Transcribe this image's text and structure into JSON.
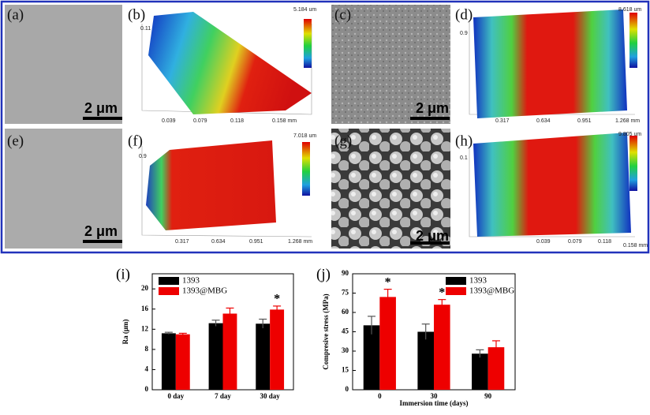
{
  "panels": [
    {
      "label": "(a)",
      "scale_bar": "2 μm"
    },
    {
      "label": "(b)",
      "z_axis": "0.11",
      "height_max": "5.184 um",
      "x_ticks": [
        "0.039",
        "0.079",
        "0.118",
        "0.158 mm"
      ]
    },
    {
      "label": "(c)",
      "scale_bar": "2 μm"
    },
    {
      "label": "(d)",
      "z_axis": "0.9",
      "height_max": "8.618 um",
      "x_ticks": [
        "0.317",
        "0.634",
        "0.951",
        "1.268 mm"
      ]
    },
    {
      "label": "(e)",
      "scale_bar": "2 μm"
    },
    {
      "label": "(f)",
      "z_axis": "0.9",
      "height_max": "7.018 um",
      "x_ticks": [
        "0.317",
        "0.634",
        "0.951",
        "1.268 mm"
      ]
    },
    {
      "label": "(g)",
      "scale_bar": "2 μm"
    },
    {
      "label": "(h)",
      "z_axis": "0.1",
      "height_max": "9.805 um",
      "x_ticks": [
        "0.039",
        "0.079",
        "0.118",
        "0.158 mm"
      ]
    }
  ],
  "chart_data": [
    {
      "type": "bar",
      "panel": "(i)",
      "y_label": "Ra (μm)",
      "categories": [
        "0 day",
        "7 day",
        "30 day"
      ],
      "series": [
        {
          "name": "1393",
          "color": "#000000",
          "values": [
            11.2,
            13.2,
            13.1
          ],
          "errors": [
            0.2,
            0.6,
            0.9
          ],
          "annotations": [
            null,
            null,
            null
          ]
        },
        {
          "name": "1393@MBG",
          "color": "#ee0000",
          "values": [
            11.0,
            15.1,
            15.9
          ],
          "errors": [
            0.2,
            1.1,
            0.7
          ],
          "annotations": [
            null,
            null,
            "*"
          ]
        }
      ],
      "ylim": [
        0,
        23
      ],
      "yticks": [
        0,
        4,
        8,
        12,
        16,
        20
      ],
      "legend": "upper left"
    },
    {
      "type": "bar",
      "panel": "(j)",
      "x_label": "Immersion time (days)",
      "y_label": "Compresive stress (MPa)",
      "categories": [
        "0",
        "30",
        "90"
      ],
      "series": [
        {
          "name": "1393",
          "color": "#000000",
          "values": [
            50,
            45,
            28
          ],
          "errors": [
            7,
            6,
            3
          ],
          "annotations": [
            null,
            null,
            null
          ]
        },
        {
          "name": "1393@MBG",
          "color": "#ee0000",
          "values": [
            72,
            66,
            33
          ],
          "errors": [
            6,
            4,
            5
          ],
          "annotations": [
            "*",
            "*",
            null
          ]
        }
      ],
      "ylim": [
        0,
        90
      ],
      "yticks": [
        0,
        15,
        30,
        45,
        60,
        75,
        90
      ],
      "legend": "upper right"
    }
  ]
}
